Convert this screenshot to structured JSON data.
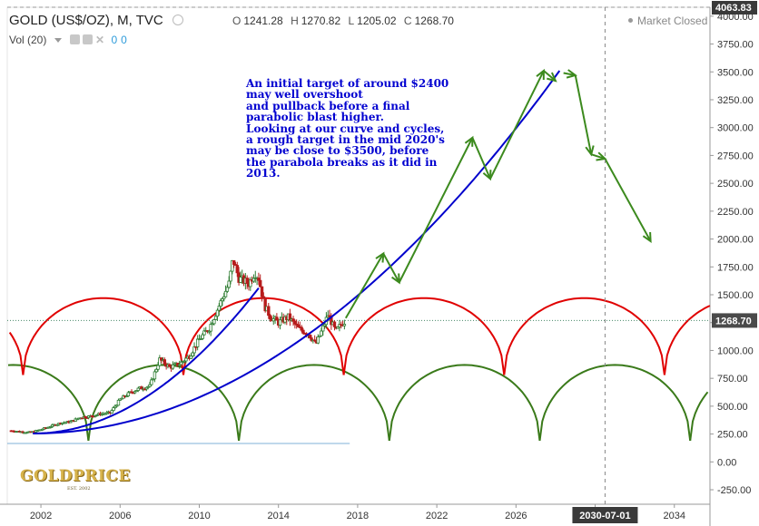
{
  "header": {
    "symbol": "GOLD (US$/OZ), M, TVC",
    "ohlc": [
      {
        "key": "O",
        "value": "1241.28"
      },
      {
        "key": "H",
        "value": "1270.82"
      },
      {
        "key": "L",
        "value": "1205.02"
      },
      {
        "key": "C",
        "value": "1268.70"
      }
    ],
    "volume_label": "Vol (20)",
    "volume_values": [
      "0",
      "0"
    ],
    "market_status": "Market Closed"
  },
  "annotation_lines": [
    "An initial target of around $2400",
    "may well overshoot",
    "and pullback before a final",
    "parabolic blast higher.",
    "Looking at our curve and cycles,",
    "a rough target in the mid 2020's",
    "may be close to $3500, before",
    "the parabola breaks as it did in",
    "2013."
  ],
  "logo": {
    "text": "GOLDPRICE",
    "sub": "EST. 2002"
  },
  "colors": {
    "price_up": "#2e7d32",
    "price_down": "#b71c1c",
    "parabola": "#0000cc",
    "red_cycles": "#e00000",
    "green_cycles": "#3a7a1a",
    "projection_arrows": "#3c8a1e",
    "last_price_tag": "#4a4a4a",
    "axis_marker": "#3a3a3a"
  },
  "chart_data": {
    "type": "line",
    "title": "GOLD (US$/OZ), M, TVC",
    "xlabel": "",
    "ylabel": "",
    "x_range": [
      2000.3,
      2035.8
    ],
    "y_range": [
      -380,
      4080
    ],
    "y_scale": "linear",
    "grid": false,
    "x_ticks": [
      "2002",
      "2006",
      "2010",
      "2014",
      "2018",
      "2022",
      "2026",
      "2030",
      "2034"
    ],
    "y_ticks": [
      "-250.00",
      "0.00",
      "250.00",
      "500.00",
      "750.00",
      "1000.00",
      "1250.00",
      "1500.00",
      "1750.00",
      "2000.00",
      "2250.00",
      "2500.00",
      "2750.00",
      "3000.00",
      "3250.00",
      "3500.00",
      "3750.00",
      "4000.00"
    ],
    "last_price": {
      "label": "1268.70",
      "value": 1268.7
    },
    "axis_top_label": {
      "label": "4063.83",
      "value": 4063.83
    },
    "crosshair_date": {
      "label": "2030-07-01",
      "x": 2030.5
    },
    "price_series": {
      "name": "",
      "x": [
        2000.5,
        2001.0,
        2001.5,
        2002.0,
        2002.5,
        2003.0,
        2003.5,
        2004.0,
        2004.5,
        2005.0,
        2005.5,
        2006.0,
        2006.5,
        2007.0,
        2007.5,
        2008.0,
        2008.5,
        2009.0,
        2009.5,
        2010.0,
        2010.5,
        2011.0,
        2011.5,
        2011.7,
        2012.0,
        2012.5,
        2012.8,
        2013.0,
        2013.3,
        2013.6,
        2014.0,
        2014.5,
        2015.0,
        2015.5,
        2015.9,
        2016.2,
        2016.5,
        2016.9,
        2017.2,
        2017.4
      ],
      "y": [
        280,
        270,
        265,
        290,
        320,
        350,
        360,
        400,
        410,
        430,
        440,
        560,
        620,
        660,
        680,
        920,
        850,
        880,
        950,
        1100,
        1200,
        1400,
        1600,
        1820,
        1650,
        1600,
        1700,
        1650,
        1400,
        1300,
        1250,
        1300,
        1200,
        1150,
        1060,
        1180,
        1320,
        1170,
        1240,
        1268
      ]
    },
    "parabolas": [
      {
        "name": "",
        "x0": 2001.6,
        "y0": 255,
        "x1": 2013.0,
        "y1": 1560,
        "exponent": 2
      },
      {
        "name": "",
        "x0": 2001.6,
        "y0": 255,
        "x1": 2028.2,
        "y1": 3510,
        "exponent": 2
      }
    ],
    "red_cycle_troughs": [
      2001.1,
      2009.2,
      2017.3,
      2025.4,
      2033.5
    ],
    "red_cycle_peak": 1470,
    "red_cycle_trough_value": 780,
    "green_cycle_troughs": [
      2004.4,
      2012.0,
      2019.6,
      2027.2,
      2034.8
    ],
    "green_cycle_peak": 870,
    "green_cycle_trough_value": 190,
    "baseline_value": 165,
    "projection_points": [
      {
        "x": 2017.4,
        "y": 1290
      },
      {
        "x": 2019.3,
        "y": 1870
      },
      {
        "x": 2020.1,
        "y": 1610
      },
      {
        "x": 2023.8,
        "y": 2910
      },
      {
        "x": 2024.7,
        "y": 2540
      },
      {
        "x": 2027.4,
        "y": 3510
      },
      {
        "x": 2028.0,
        "y": 3420
      },
      {
        "x": 2028.4,
        "y": 3490
      },
      {
        "x": 2029.0,
        "y": 3470
      },
      {
        "x": 2029.8,
        "y": 2760
      },
      {
        "x": 2030.5,
        "y": 2720
      },
      {
        "x": 2032.8,
        "y": 1980
      }
    ]
  }
}
